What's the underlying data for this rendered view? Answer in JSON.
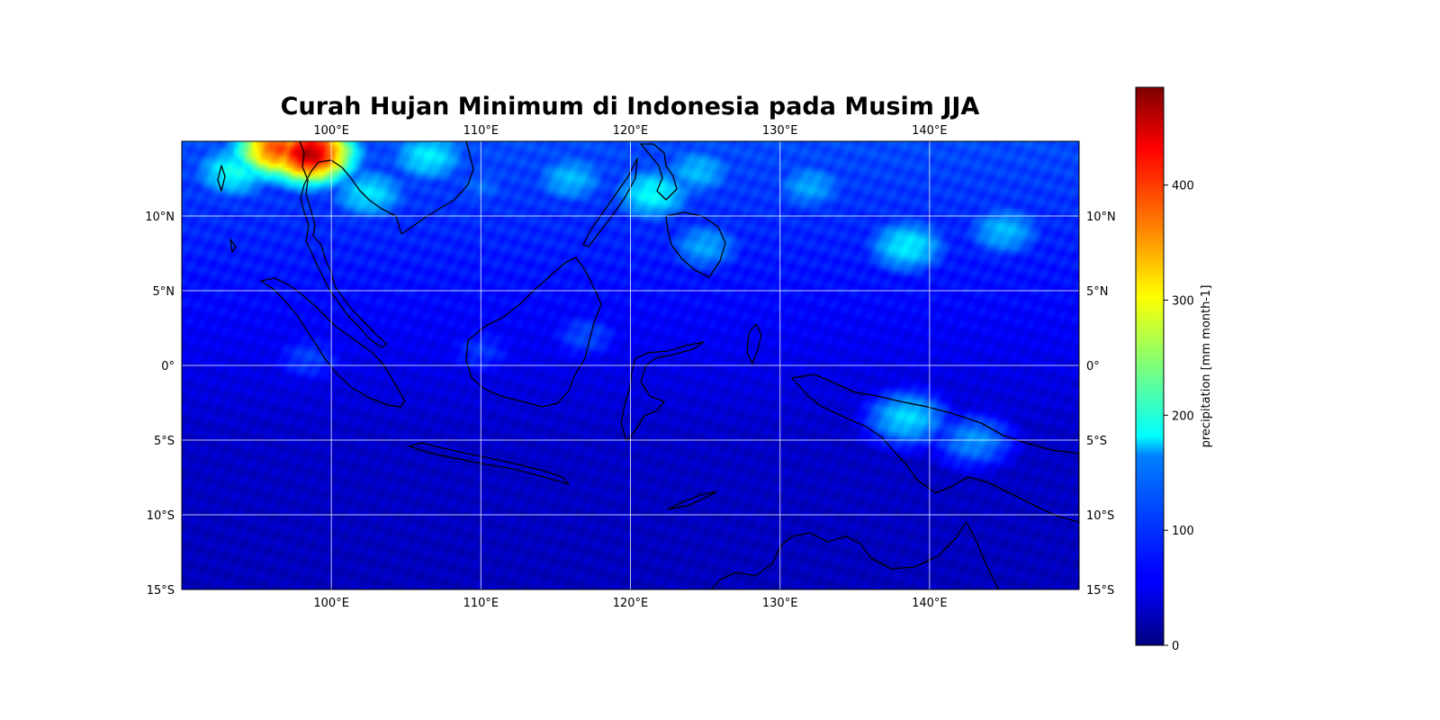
{
  "chart_data": {
    "type": "heatmap",
    "title": "Curah Hujan Minimum di Indonesia pada Musim JJA",
    "xlim": [
      90,
      150
    ],
    "ylim": [
      -15,
      15
    ],
    "x_ticks": [
      {
        "value": 100,
        "label": "100°E"
      },
      {
        "value": 110,
        "label": "110°E"
      },
      {
        "value": 120,
        "label": "120°E"
      },
      {
        "value": 130,
        "label": "130°E"
      },
      {
        "value": 140,
        "label": "140°E"
      }
    ],
    "y_ticks": [
      {
        "value": 10,
        "label": "10°N"
      },
      {
        "value": 5,
        "label": "5°N"
      },
      {
        "value": 0,
        "label": "0°"
      },
      {
        "value": -5,
        "label": "5°S"
      },
      {
        "value": -10,
        "label": "10°S"
      },
      {
        "value": -15,
        "label": "15°S"
      }
    ],
    "grid": true,
    "colormap": "jet",
    "colorbar": {
      "label": "precipitation [mm month-1]",
      "range": [
        0,
        485
      ],
      "ticks": [
        0,
        100,
        200,
        300,
        400
      ]
    },
    "rain_centers": [
      {
        "lon": 96.5,
        "lat": 14.5,
        "value": 390
      },
      {
        "lon": 98.5,
        "lat": 14.2,
        "value": 460
      },
      {
        "lon": 93.5,
        "lat": 13.0,
        "value": 190
      },
      {
        "lon": 102.5,
        "lat": 11.5,
        "value": 170
      },
      {
        "lon": 106.5,
        "lat": 14.0,
        "value": 175
      },
      {
        "lon": 110.0,
        "lat": 12.0,
        "value": 110
      },
      {
        "lon": 116.0,
        "lat": 12.5,
        "value": 150
      },
      {
        "lon": 121.5,
        "lat": 11.5,
        "value": 185
      },
      {
        "lon": 124.5,
        "lat": 13.0,
        "value": 150
      },
      {
        "lon": 125.0,
        "lat": 8.0,
        "value": 140
      },
      {
        "lon": 132.0,
        "lat": 12.0,
        "value": 140
      },
      {
        "lon": 138.5,
        "lat": 8.0,
        "value": 175
      },
      {
        "lon": 145.0,
        "lat": 9.0,
        "value": 150
      },
      {
        "lon": 138.5,
        "lat": -3.5,
        "value": 165
      },
      {
        "lon": 143.0,
        "lat": -5.0,
        "value": 130
      },
      {
        "lon": 110.0,
        "lat": 1.0,
        "value": 85
      },
      {
        "lon": 117.0,
        "lat": 2.0,
        "value": 95
      },
      {
        "lon": 98.5,
        "lat": 0.5,
        "value": 90
      }
    ]
  }
}
